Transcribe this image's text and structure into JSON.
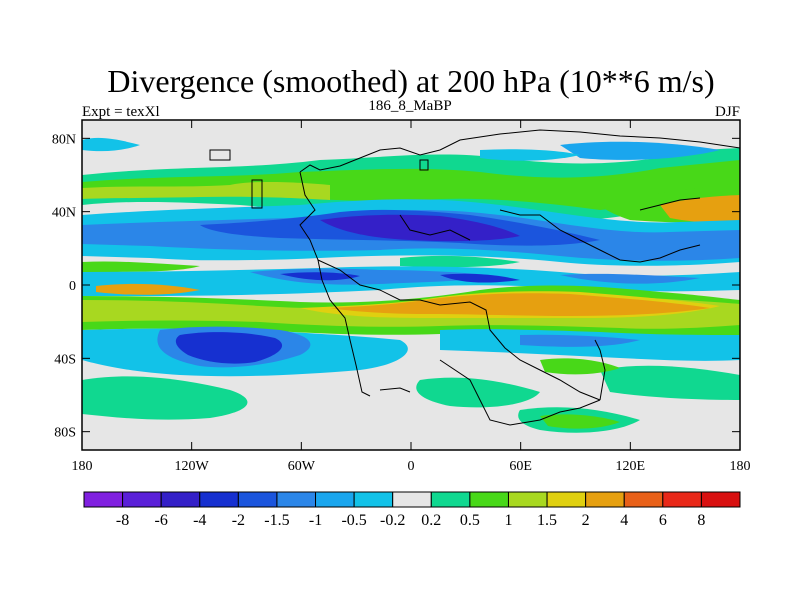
{
  "chart_data": {
    "type": "heatmap",
    "title": "Divergence (smoothed) at 200 hPa (10**6 m/s)",
    "left_label": "Expt = texXl",
    "center_label": "186_8_MaBP",
    "right_label": "DJF",
    "x_ticks": [
      "180",
      "120W",
      "60W",
      "0",
      "60E",
      "120E",
      "180"
    ],
    "x_tick_values": [
      -180,
      -120,
      -60,
      0,
      60,
      120,
      180
    ],
    "y_ticks": [
      "80N",
      "40N",
      "0",
      "40S",
      "80S"
    ],
    "y_tick_values": [
      80,
      40,
      0,
      -40,
      -80
    ],
    "xlim": [
      -180,
      180
    ],
    "ylim": [
      -90,
      90
    ],
    "colorbar_labels": [
      "-8",
      "-6",
      "-4",
      "-2",
      "-1.5",
      "-1",
      "-0.5",
      "-0.2",
      "0.2",
      "0.5",
      "1",
      "1.5",
      "2",
      "4",
      "6",
      "8"
    ],
    "colorbar_colors": [
      "#8020e0",
      "#5a20d8",
      "#3420c8",
      "#1630d0",
      "#1b55dd",
      "#2b86e8",
      "#1aa6ee",
      "#12c2e8",
      "#e6e6e6",
      "#10d890",
      "#48d818",
      "#a8d820",
      "#e0d010",
      "#e6a010",
      "#e86018",
      "#e82818",
      "#d81010"
    ]
  }
}
